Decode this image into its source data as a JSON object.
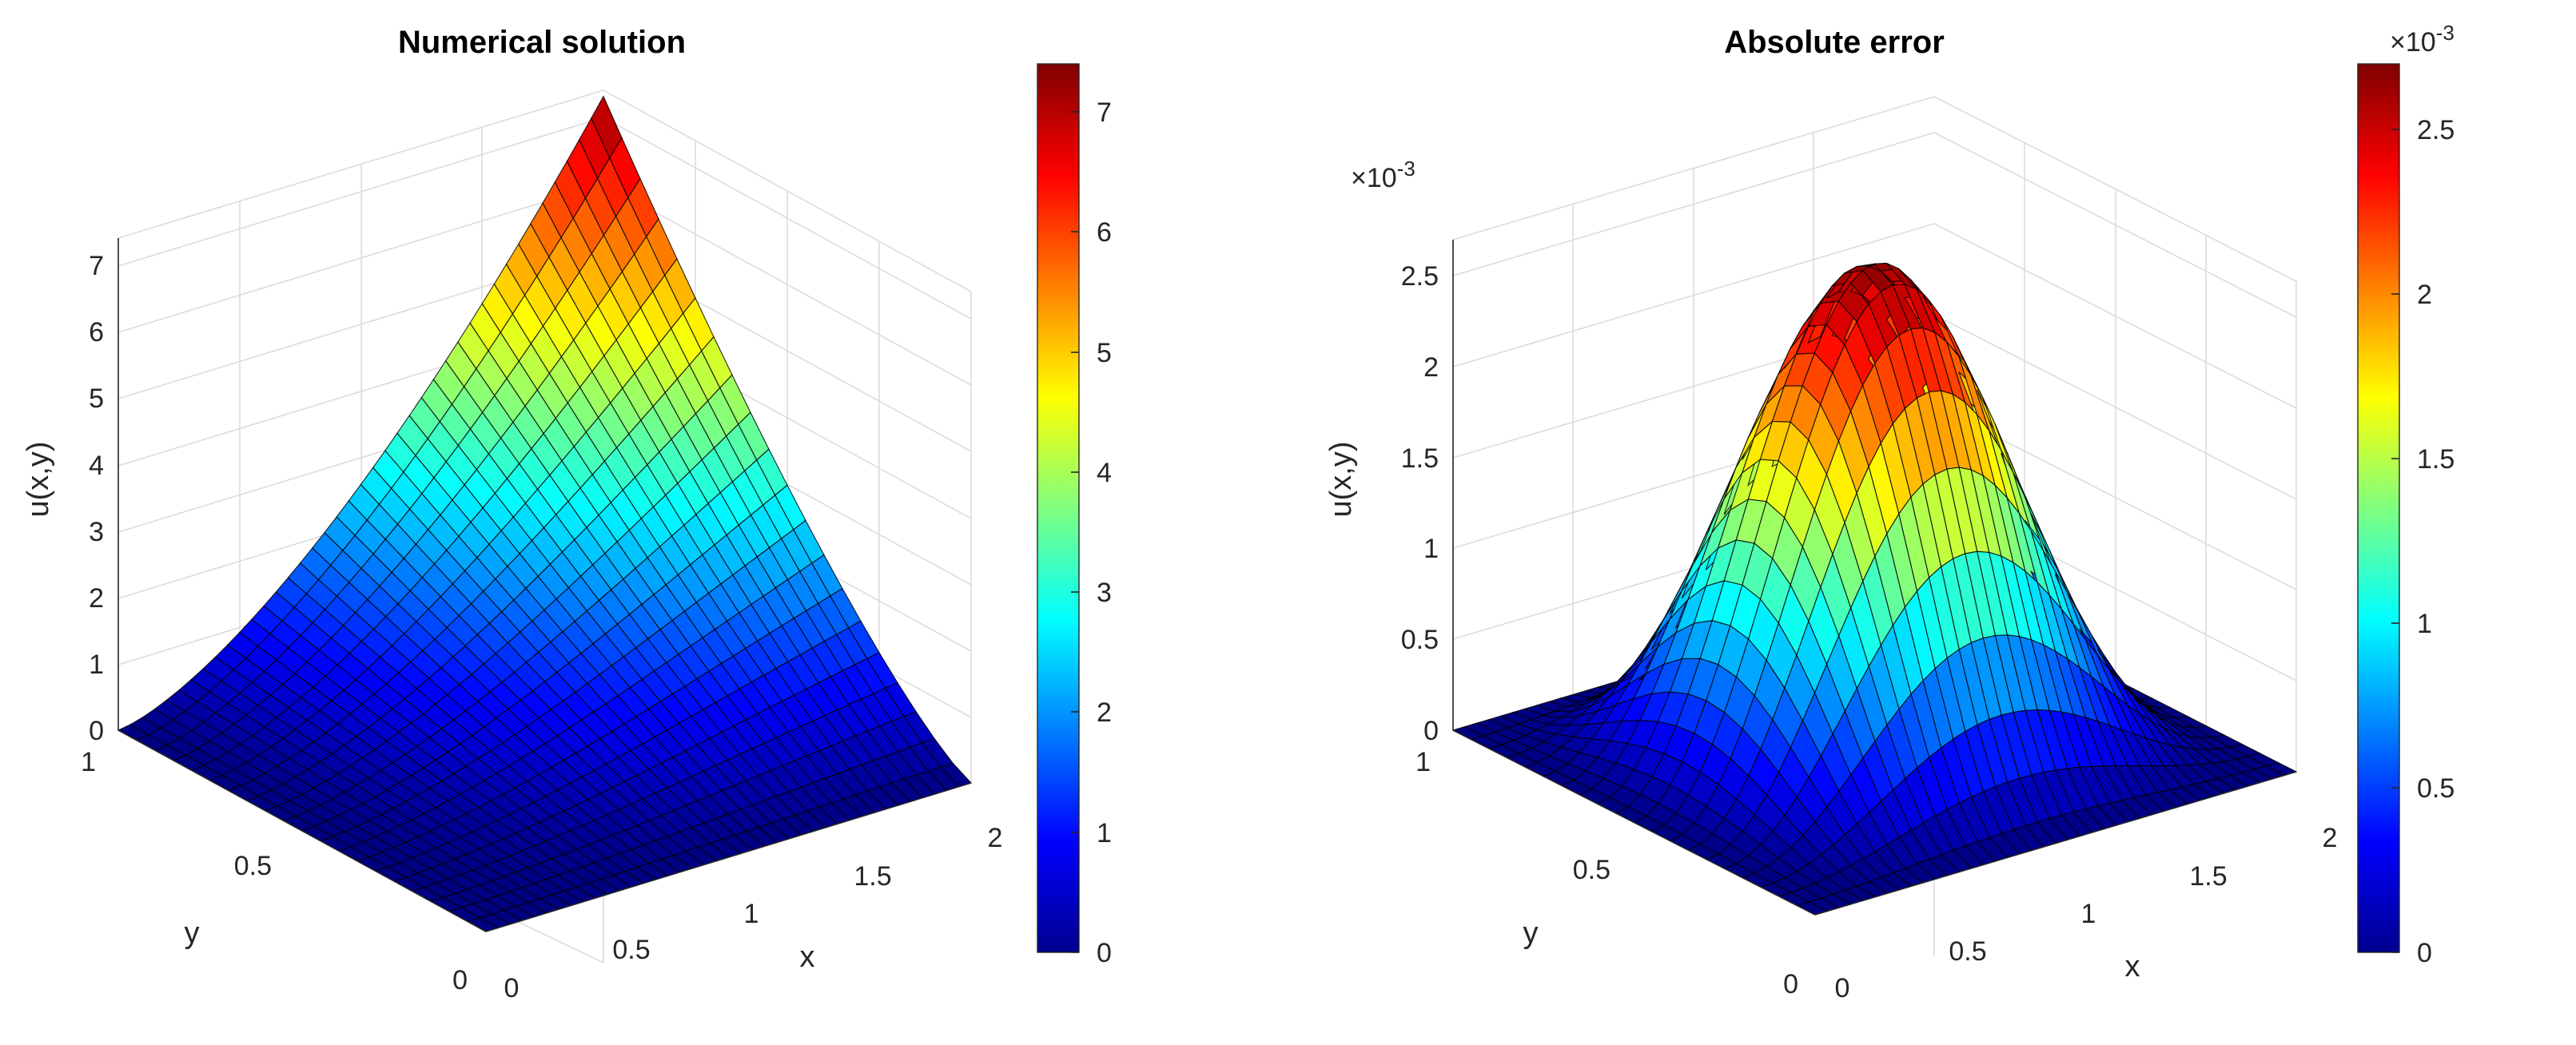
{
  "chart_data": [
    {
      "type": "surface",
      "title": "Numerical solution",
      "xlabel": "x",
      "ylabel": "y",
      "zlabel": "u(x,y)",
      "xlim": [
        0,
        2
      ],
      "ylim": [
        0,
        1
      ],
      "zlim": [
        0,
        7.4
      ],
      "x_ticks": [
        "0",
        "0.5",
        "1",
        "1.5",
        "2"
      ],
      "y_ticks": [
        "0",
        "0.5",
        "1"
      ],
      "z_ticks": [
        "0",
        "1",
        "2",
        "3",
        "4",
        "5",
        "6",
        "7"
      ],
      "colorbar": {
        "range": [
          0,
          7.4
        ],
        "ticks": [
          "0",
          "1",
          "2",
          "3",
          "4",
          "5",
          "6",
          "7"
        ],
        "colormap": "jet"
      },
      "grid": true,
      "mesh": {
        "nx": 40,
        "ny": 20
      },
      "surface_values": {
        "corner_x0_y0": 0,
        "corner_x2_y0": 0,
        "corner_x0_y1": 0,
        "corner_x2_y1": 7.3,
        "peak": {
          "x": 2,
          "y": 1,
          "u": 7.3
        }
      }
    },
    {
      "type": "surface",
      "title": "Absolute error",
      "xlabel": "x",
      "ylabel": "y",
      "zlabel": "u(x,y)",
      "xlim": [
        0,
        2
      ],
      "ylim": [
        0,
        1
      ],
      "zlim": [
        0,
        0.0027
      ],
      "z_exponent": "×10^-3",
      "x_ticks": [
        "0",
        "0.5",
        "1",
        "1.5",
        "2"
      ],
      "y_ticks": [
        "0",
        "0.5",
        "1"
      ],
      "z_ticks": [
        "0",
        "0.5",
        "1",
        "1.5",
        "2",
        "2.5"
      ],
      "colorbar": {
        "range": [
          0,
          0.0027
        ],
        "ticks": [
          "0",
          "0.5",
          "1",
          "1.5",
          "2",
          "2.5"
        ],
        "exponent": "×10^-3",
        "colormap": "jet"
      },
      "grid": true,
      "mesh": {
        "nx": 40,
        "ny": 20
      },
      "surface_values": {
        "corners": 0,
        "peak": {
          "x": 1,
          "y": 0.5,
          "u": 0.00268
        }
      }
    }
  ]
}
